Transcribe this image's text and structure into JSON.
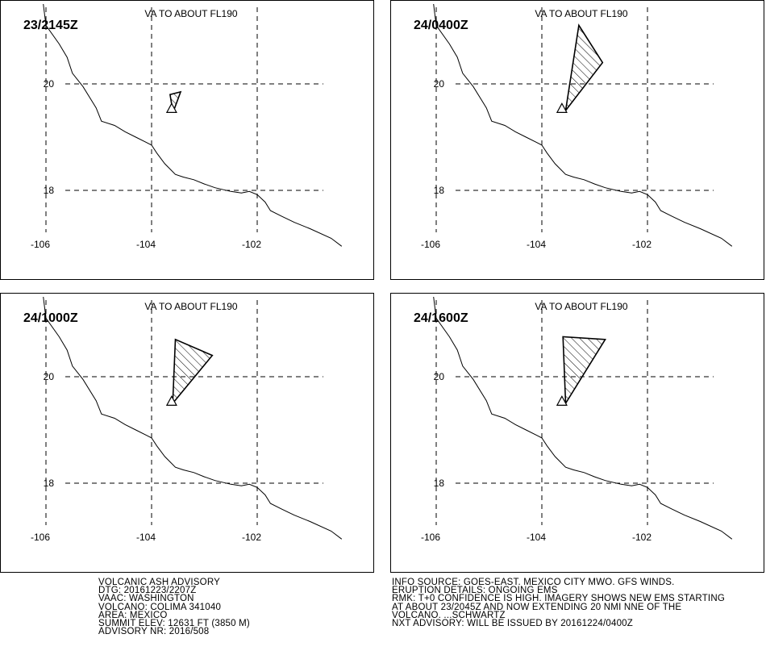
{
  "panels": [
    {
      "time": "23/2145Z",
      "level": "VA TO ABOUT FL190",
      "plume": [
        [
          -103.6,
          19.5
        ],
        [
          -103.65,
          19.8
        ],
        [
          -103.45,
          19.85
        ],
        [
          -103.58,
          19.5
        ]
      ]
    },
    {
      "time": "24/0400Z",
      "level": "VA TO ABOUT FL190",
      "plume": [
        [
          -103.55,
          19.5
        ],
        [
          -103.3,
          21.1
        ],
        [
          -102.85,
          20.4
        ]
      ]
    },
    {
      "time": "24/1000Z",
      "level": "VA TO ABOUT FL190",
      "plume": [
        [
          -103.6,
          19.5
        ],
        [
          -103.55,
          20.7
        ],
        [
          -102.85,
          20.4
        ]
      ]
    },
    {
      "time": "24/1600Z",
      "level": "VA TO ABOUT FL190",
      "plume": [
        [
          -103.55,
          19.5
        ],
        [
          -103.6,
          20.75
        ],
        [
          -102.8,
          20.7
        ]
      ]
    }
  ],
  "grid": {
    "lon_labels": [
      "-106",
      "-104",
      "-102"
    ],
    "lat_labels": [
      "20",
      "18"
    ]
  },
  "volcano": {
    "lon": -103.62,
    "lat": 19.51
  },
  "advisory_left": [
    "VOLCANIC ASH ADVISORY",
    "DTG: 20161223/2207Z",
    "VAAC: WASHINGTON",
    "VOLCANO: COLIMA 341040",
    "AREA: MEXICO",
    "SUMMIT ELEV: 12631 FT (3850 M)",
    "ADVISORY NR: 2016/508"
  ],
  "advisory_right": [
    "INFO SOURCE: GOES-EAST. MEXICO CITY MWO. GFS WINDS.",
    "ERUPTION DETAILS: ONGOING EMS",
    "RMK: T+0 CONFIDENCE IS HIGH. IMAGERY SHOWS NEW EMS STARTING",
    "AT ABOUT 23/2045Z AND NOW EXTENDING 20 NMI NNE OF THE",
    "VOLCANO. ...SCHWARTZ",
    "NXT ADVISORY: WILL BE ISSUED BY 20161224/0400Z"
  ],
  "coastline": [
    [
      -106.05,
      21.5
    ],
    [
      -106.0,
      21.1
    ],
    [
      -105.75,
      20.75
    ],
    [
      -105.6,
      20.5
    ],
    [
      -105.5,
      20.2
    ],
    [
      -105.3,
      19.95
    ],
    [
      -105.05,
      19.55
    ],
    [
      -104.95,
      19.3
    ],
    [
      -104.7,
      19.22
    ],
    [
      -104.5,
      19.1
    ],
    [
      -104.3,
      19.0
    ],
    [
      -104.1,
      18.9
    ],
    [
      -104.0,
      18.85
    ],
    [
      -103.9,
      18.7
    ],
    [
      -103.75,
      18.5
    ],
    [
      -103.55,
      18.3
    ],
    [
      -103.4,
      18.25
    ],
    [
      -103.2,
      18.2
    ],
    [
      -103.0,
      18.12
    ],
    [
      -102.8,
      18.05
    ],
    [
      -102.5,
      17.98
    ],
    [
      -102.3,
      17.95
    ],
    [
      -102.15,
      17.98
    ],
    [
      -102.0,
      17.92
    ],
    [
      -101.85,
      17.78
    ],
    [
      -101.75,
      17.62
    ],
    [
      -101.55,
      17.52
    ],
    [
      -101.3,
      17.4
    ],
    [
      -101.0,
      17.28
    ],
    [
      -100.6,
      17.1
    ],
    [
      -100.4,
      16.95
    ]
  ]
}
